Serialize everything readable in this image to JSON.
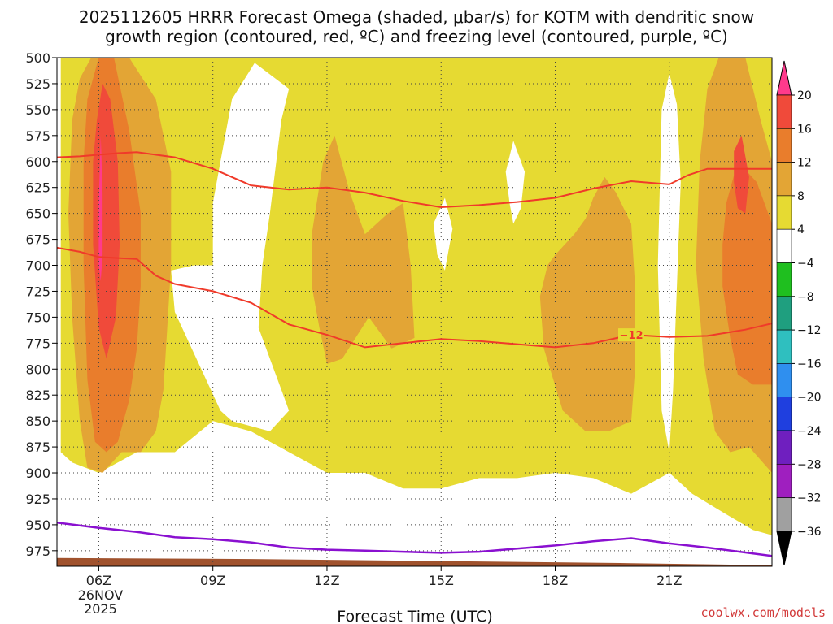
{
  "title_lines": [
    "2025112605 HRRR Forecast Omega (shaded, μbar/s) for KOTM with dendritic snow",
    "growth region (contoured, red, ºC) and freezing level (contoured, purple, ºC)"
  ],
  "credit": "coolwx.com/models",
  "chart_data": {
    "type": "heatmap",
    "xlabel": "Forecast Time (UTC)",
    "ylabel": "",
    "x_range_hours_utc": [
      4.9,
      23.7
    ],
    "y_range_hpa": [
      500,
      990
    ],
    "y_scale": "linear-pressure-inverted",
    "grid": true,
    "x_ticks": [
      {
        "hour": 6,
        "label": "06Z",
        "sub": [
          "26NOV",
          "2025"
        ]
      },
      {
        "hour": 9,
        "label": "09Z",
        "sub": []
      },
      {
        "hour": 12,
        "label": "12Z",
        "sub": []
      },
      {
        "hour": 15,
        "label": "15Z",
        "sub": []
      },
      {
        "hour": 18,
        "label": "18Z",
        "sub": []
      },
      {
        "hour": 21,
        "label": "21Z",
        "sub": []
      }
    ],
    "y_ticks": [
      500,
      525,
      550,
      575,
      600,
      625,
      650,
      675,
      700,
      725,
      750,
      775,
      800,
      825,
      850,
      875,
      900,
      925,
      950,
      975
    ],
    "colorbar": {
      "levels": [
        "20",
        "16",
        "12",
        "8",
        "4",
        "−4",
        "−8",
        "−12",
        "−16",
        "−20",
        "−24",
        "−28",
        "−32",
        "−36"
      ],
      "colors": [
        "#ff3a8c",
        "#f04a3a",
        "#e97d2c",
        "#e3a535",
        "#e6da32",
        "#ffffff",
        "#1fbf1f",
        "#1f9f7f",
        "#2fbfbf",
        "#2f8fef",
        "#1f3fdf",
        "#6f1fbf",
        "#9f1fbf",
        "#a0a0a0",
        "#000000"
      ]
    },
    "omega_regions": [
      {
        "level": "4",
        "color": "#e6da32",
        "points": [
          [
            5.0,
            500
          ],
          [
            23.7,
            500
          ],
          [
            23.7,
            960
          ],
          [
            23.2,
            955
          ],
          [
            22.5,
            940
          ],
          [
            21.6,
            920
          ],
          [
            21.0,
            900
          ],
          [
            20.0,
            920
          ],
          [
            19.0,
            905
          ],
          [
            18.0,
            900
          ],
          [
            17.0,
            905
          ],
          [
            16.0,
            905
          ],
          [
            15.0,
            915
          ],
          [
            14.0,
            915
          ],
          [
            13.0,
            900
          ],
          [
            12.0,
            900
          ],
          [
            11.0,
            880
          ],
          [
            10.0,
            860
          ],
          [
            9.0,
            850
          ],
          [
            8.0,
            880
          ],
          [
            7.0,
            880
          ],
          [
            6.0,
            900
          ],
          [
            5.3,
            890
          ],
          [
            5.0,
            880
          ]
        ]
      },
      {
        "level": "white",
        "color": "#ffffff",
        "points": [
          [
            9.5,
            540
          ],
          [
            10.1,
            505
          ],
          [
            11.0,
            530
          ],
          [
            10.8,
            560
          ],
          [
            10.5,
            650
          ],
          [
            10.3,
            700
          ],
          [
            10.2,
            760
          ],
          [
            10.5,
            790
          ],
          [
            10.8,
            820
          ],
          [
            11.0,
            840
          ],
          [
            10.5,
            860
          ],
          [
            10.0,
            855
          ],
          [
            9.5,
            850
          ],
          [
            9.2,
            840
          ],
          [
            8.0,
            745
          ],
          [
            7.9,
            705
          ],
          [
            8.5,
            700
          ],
          [
            9.0,
            700
          ],
          [
            9.0,
            640
          ],
          [
            9.2,
            600
          ]
        ]
      },
      {
        "level": "white",
        "color": "#ffffff",
        "points": [
          [
            14.8,
            660
          ],
          [
            15.1,
            635
          ],
          [
            15.3,
            665
          ],
          [
            15.1,
            705
          ],
          [
            14.9,
            690
          ]
        ]
      },
      {
        "level": "white",
        "color": "#ffffff",
        "points": [
          [
            16.7,
            610
          ],
          [
            16.9,
            580
          ],
          [
            17.2,
            610
          ],
          [
            17.1,
            645
          ],
          [
            16.9,
            660
          ],
          [
            16.8,
            640
          ]
        ]
      },
      {
        "level": "white",
        "color": "#ffffff",
        "points": [
          [
            20.8,
            550
          ],
          [
            21.0,
            515
          ],
          [
            21.2,
            545
          ],
          [
            21.3,
            620
          ],
          [
            21.1,
            820
          ],
          [
            21.0,
            880
          ],
          [
            20.8,
            840
          ],
          [
            20.7,
            700
          ]
        ]
      },
      {
        "level": "8",
        "color": "#e3a535",
        "points": [
          [
            5.8,
            500
          ],
          [
            6.8,
            500
          ],
          [
            7.5,
            540
          ],
          [
            7.9,
            610
          ],
          [
            7.9,
            700
          ],
          [
            7.8,
            760
          ],
          [
            7.7,
            820
          ],
          [
            7.5,
            860
          ],
          [
            7.1,
            880
          ],
          [
            6.6,
            880
          ],
          [
            6.1,
            900
          ],
          [
            5.7,
            895
          ],
          [
            5.5,
            850
          ],
          [
            5.3,
            750
          ],
          [
            5.2,
            650
          ],
          [
            5.3,
            560
          ],
          [
            5.5,
            520
          ]
        ]
      },
      {
        "level": "8",
        "color": "#e3a535",
        "points": [
          [
            11.6,
            670
          ],
          [
            11.9,
            600
          ],
          [
            12.2,
            575
          ],
          [
            12.6,
            630
          ],
          [
            13.0,
            670
          ],
          [
            13.6,
            650
          ],
          [
            14.0,
            640
          ],
          [
            14.2,
            700
          ],
          [
            14.3,
            770
          ],
          [
            13.7,
            780
          ],
          [
            13.1,
            750
          ],
          [
            12.4,
            790
          ],
          [
            12.0,
            795
          ],
          [
            11.8,
            760
          ],
          [
            11.6,
            720
          ]
        ]
      },
      {
        "level": "8",
        "color": "#e3a535",
        "points": [
          [
            18.0,
            690
          ],
          [
            18.5,
            670
          ],
          [
            18.8,
            655
          ],
          [
            19.0,
            635
          ],
          [
            19.3,
            615
          ],
          [
            19.6,
            630
          ],
          [
            20.0,
            660
          ],
          [
            20.1,
            720
          ],
          [
            20.1,
            800
          ],
          [
            20.0,
            850
          ],
          [
            19.4,
            860
          ],
          [
            18.8,
            860
          ],
          [
            18.2,
            840
          ],
          [
            17.7,
            780
          ],
          [
            17.6,
            730
          ],
          [
            17.8,
            700
          ]
        ]
      },
      {
        "level": "8",
        "color": "#e3a535",
        "points": [
          [
            22.0,
            530
          ],
          [
            22.3,
            500
          ],
          [
            23.0,
            500
          ],
          [
            23.4,
            560
          ],
          [
            23.7,
            600
          ],
          [
            23.7,
            900
          ],
          [
            23.1,
            875
          ],
          [
            22.6,
            880
          ],
          [
            22.2,
            860
          ],
          [
            21.9,
            790
          ],
          [
            21.7,
            700
          ],
          [
            21.8,
            600
          ]
        ]
      },
      {
        "level": "12",
        "color": "#e97d2c",
        "points": [
          [
            6.0,
            500
          ],
          [
            6.4,
            500
          ],
          [
            6.8,
            570
          ],
          [
            7.1,
            650
          ],
          [
            7.1,
            720
          ],
          [
            7.0,
            780
          ],
          [
            6.8,
            830
          ],
          [
            6.5,
            870
          ],
          [
            6.2,
            880
          ],
          [
            5.9,
            870
          ],
          [
            5.7,
            810
          ],
          [
            5.6,
            700
          ],
          [
            5.6,
            600
          ],
          [
            5.7,
            540
          ]
        ]
      },
      {
        "level": "12",
        "color": "#e97d2c",
        "points": [
          [
            22.5,
            640
          ],
          [
            22.8,
            600
          ],
          [
            23.3,
            620
          ],
          [
            23.7,
            660
          ],
          [
            23.7,
            815
          ],
          [
            23.2,
            815
          ],
          [
            22.8,
            805
          ],
          [
            22.6,
            770
          ],
          [
            22.4,
            720
          ],
          [
            22.4,
            680
          ]
        ]
      },
      {
        "level": "16",
        "color": "#f04a3a",
        "points": [
          [
            5.95,
            560
          ],
          [
            6.1,
            525
          ],
          [
            6.3,
            540
          ],
          [
            6.5,
            600
          ],
          [
            6.55,
            680
          ],
          [
            6.45,
            750
          ],
          [
            6.2,
            790
          ],
          [
            6.0,
            760
          ],
          [
            5.85,
            680
          ],
          [
            5.85,
            600
          ]
        ]
      },
      {
        "level": "16",
        "color": "#f04a3a",
        "points": [
          [
            22.7,
            590
          ],
          [
            22.9,
            575
          ],
          [
            23.1,
            615
          ],
          [
            23.0,
            650
          ],
          [
            22.8,
            645
          ],
          [
            22.7,
            620
          ]
        ]
      },
      {
        "level": "20",
        "color": "#ff3a8c",
        "points": [
          [
            6.0,
            640
          ],
          [
            6.05,
            575
          ],
          [
            6.1,
            630
          ],
          [
            6.1,
            690
          ],
          [
            6.05,
            715
          ],
          [
            6.0,
            700
          ]
        ]
      }
    ],
    "dgz_contours": [
      {
        "label": "",
        "color": "#f03a2a",
        "points": [
          [
            4.9,
            596
          ],
          [
            5.5,
            595
          ],
          [
            6.5,
            592
          ],
          [
            7.0,
            591
          ],
          [
            8.0,
            596
          ],
          [
            9.0,
            607
          ],
          [
            10.0,
            623
          ],
          [
            11.0,
            627
          ],
          [
            12.0,
            625
          ],
          [
            13.0,
            630
          ],
          [
            14.0,
            638
          ],
          [
            15.0,
            644
          ],
          [
            16.0,
            642
          ],
          [
            17.0,
            639
          ],
          [
            18.0,
            635
          ],
          [
            19.0,
            626
          ],
          [
            20.0,
            619
          ],
          [
            21.0,
            622
          ],
          [
            21.5,
            613
          ],
          [
            22.0,
            607
          ],
          [
            23.7,
            607
          ]
        ]
      },
      {
        "label": "−12",
        "label_x": 20.0,
        "color": "#f03a2a",
        "points": [
          [
            4.9,
            683
          ],
          [
            5.5,
            687
          ],
          [
            6.0,
            692
          ],
          [
            6.5,
            693
          ],
          [
            7.0,
            694
          ],
          [
            7.5,
            710
          ],
          [
            8.0,
            718
          ],
          [
            9.0,
            725
          ],
          [
            10.0,
            736
          ],
          [
            11.0,
            757
          ],
          [
            12.0,
            767
          ],
          [
            13.0,
            779
          ],
          [
            14.0,
            775
          ],
          [
            15.0,
            771
          ],
          [
            16.0,
            773
          ],
          [
            17.0,
            776
          ],
          [
            18.0,
            779
          ],
          [
            19.0,
            775
          ],
          [
            20.0,
            767
          ],
          [
            21.0,
            769
          ],
          [
            22.0,
            768
          ],
          [
            23.0,
            762
          ],
          [
            23.7,
            756
          ]
        ]
      }
    ],
    "freezing_level": {
      "color": "#8a10d0",
      "points": [
        [
          4.9,
          948
        ],
        [
          6.0,
          953
        ],
        [
          7.0,
          957
        ],
        [
          8.0,
          962
        ],
        [
          9.0,
          964
        ],
        [
          10.0,
          967
        ],
        [
          11.0,
          972
        ],
        [
          12.0,
          974
        ],
        [
          13.0,
          975
        ],
        [
          14.0,
          976
        ],
        [
          15.0,
          977
        ],
        [
          16.0,
          976
        ],
        [
          17.0,
          973
        ],
        [
          18.0,
          970
        ],
        [
          19.0,
          966
        ],
        [
          20.0,
          963
        ],
        [
          21.0,
          968
        ],
        [
          22.0,
          972
        ],
        [
          23.7,
          980
        ]
      ]
    },
    "terrain": {
      "color": "#a0522d",
      "points": [
        [
          4.9,
          982
        ],
        [
          10.0,
          983
        ],
        [
          15.0,
          985
        ],
        [
          20.0,
          987
        ],
        [
          23.7,
          989
        ],
        [
          23.7,
          990
        ],
        [
          4.9,
          990
        ]
      ]
    }
  }
}
